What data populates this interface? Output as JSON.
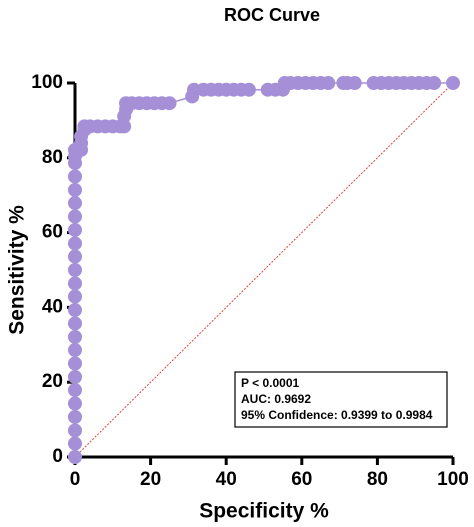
{
  "chart_data": {
    "type": "line",
    "title": "ROC Curve",
    "x_label": "Specificity %",
    "y_label": "Sensitivity %",
    "annotations": [
      "P < 0.0001",
      "AUC: 0.9692",
      "95% Confidence: 0.9399 to 0.9984"
    ],
    "color": "#a590d8",
    "reference_color": "#e0453a",
    "xlim": [
      0,
      100
    ],
    "ylim": [
      0,
      100
    ],
    "xticks": [
      0,
      20,
      40,
      60,
      80,
      100
    ],
    "yticks": [
      0,
      20,
      40,
      60,
      80,
      100
    ],
    "x": [
      0,
      0,
      0,
      0,
      0,
      0,
      0,
      0,
      0,
      0,
      0,
      0,
      0,
      0,
      0,
      0,
      0,
      0,
      0,
      0,
      0,
      0,
      0,
      0,
      0,
      1.6,
      1.6,
      1.6,
      2.5,
      2.5,
      4,
      6,
      8,
      10,
      12,
      13,
      13,
      13.5,
      13.5,
      15,
      17,
      19,
      21,
      23,
      25,
      31,
      31.5,
      34,
      36,
      38,
      40,
      42,
      44,
      46,
      51,
      53,
      55,
      55.5,
      57,
      59,
      61,
      63,
      65,
      67,
      71,
      72,
      74,
      79,
      81,
      83,
      85,
      87,
      89,
      91,
      93,
      95,
      100
    ],
    "y": [
      0,
      3.6,
      7.1,
      10.7,
      14.3,
      17.9,
      21.4,
      25,
      28.6,
      32.1,
      35.7,
      39.3,
      42.9,
      46.4,
      50,
      53.6,
      57.1,
      60.7,
      64.3,
      67.9,
      71.4,
      75,
      78.6,
      80.4,
      82.1,
      82.1,
      83.9,
      85.7,
      87.5,
      88.4,
      88.4,
      88.4,
      88.4,
      88.4,
      88.4,
      88.4,
      91.1,
      92.9,
      94.6,
      94.6,
      94.6,
      94.6,
      94.6,
      94.6,
      94.6,
      96.4,
      98.2,
      98.2,
      98.2,
      98.2,
      98.2,
      98.2,
      98.2,
      98.2,
      98.2,
      98.2,
      98.2,
      100,
      100,
      100,
      100,
      100,
      100,
      100,
      100,
      100,
      100,
      100,
      100,
      100,
      100,
      100,
      100,
      100,
      100,
      100,
      100
    ]
  }
}
